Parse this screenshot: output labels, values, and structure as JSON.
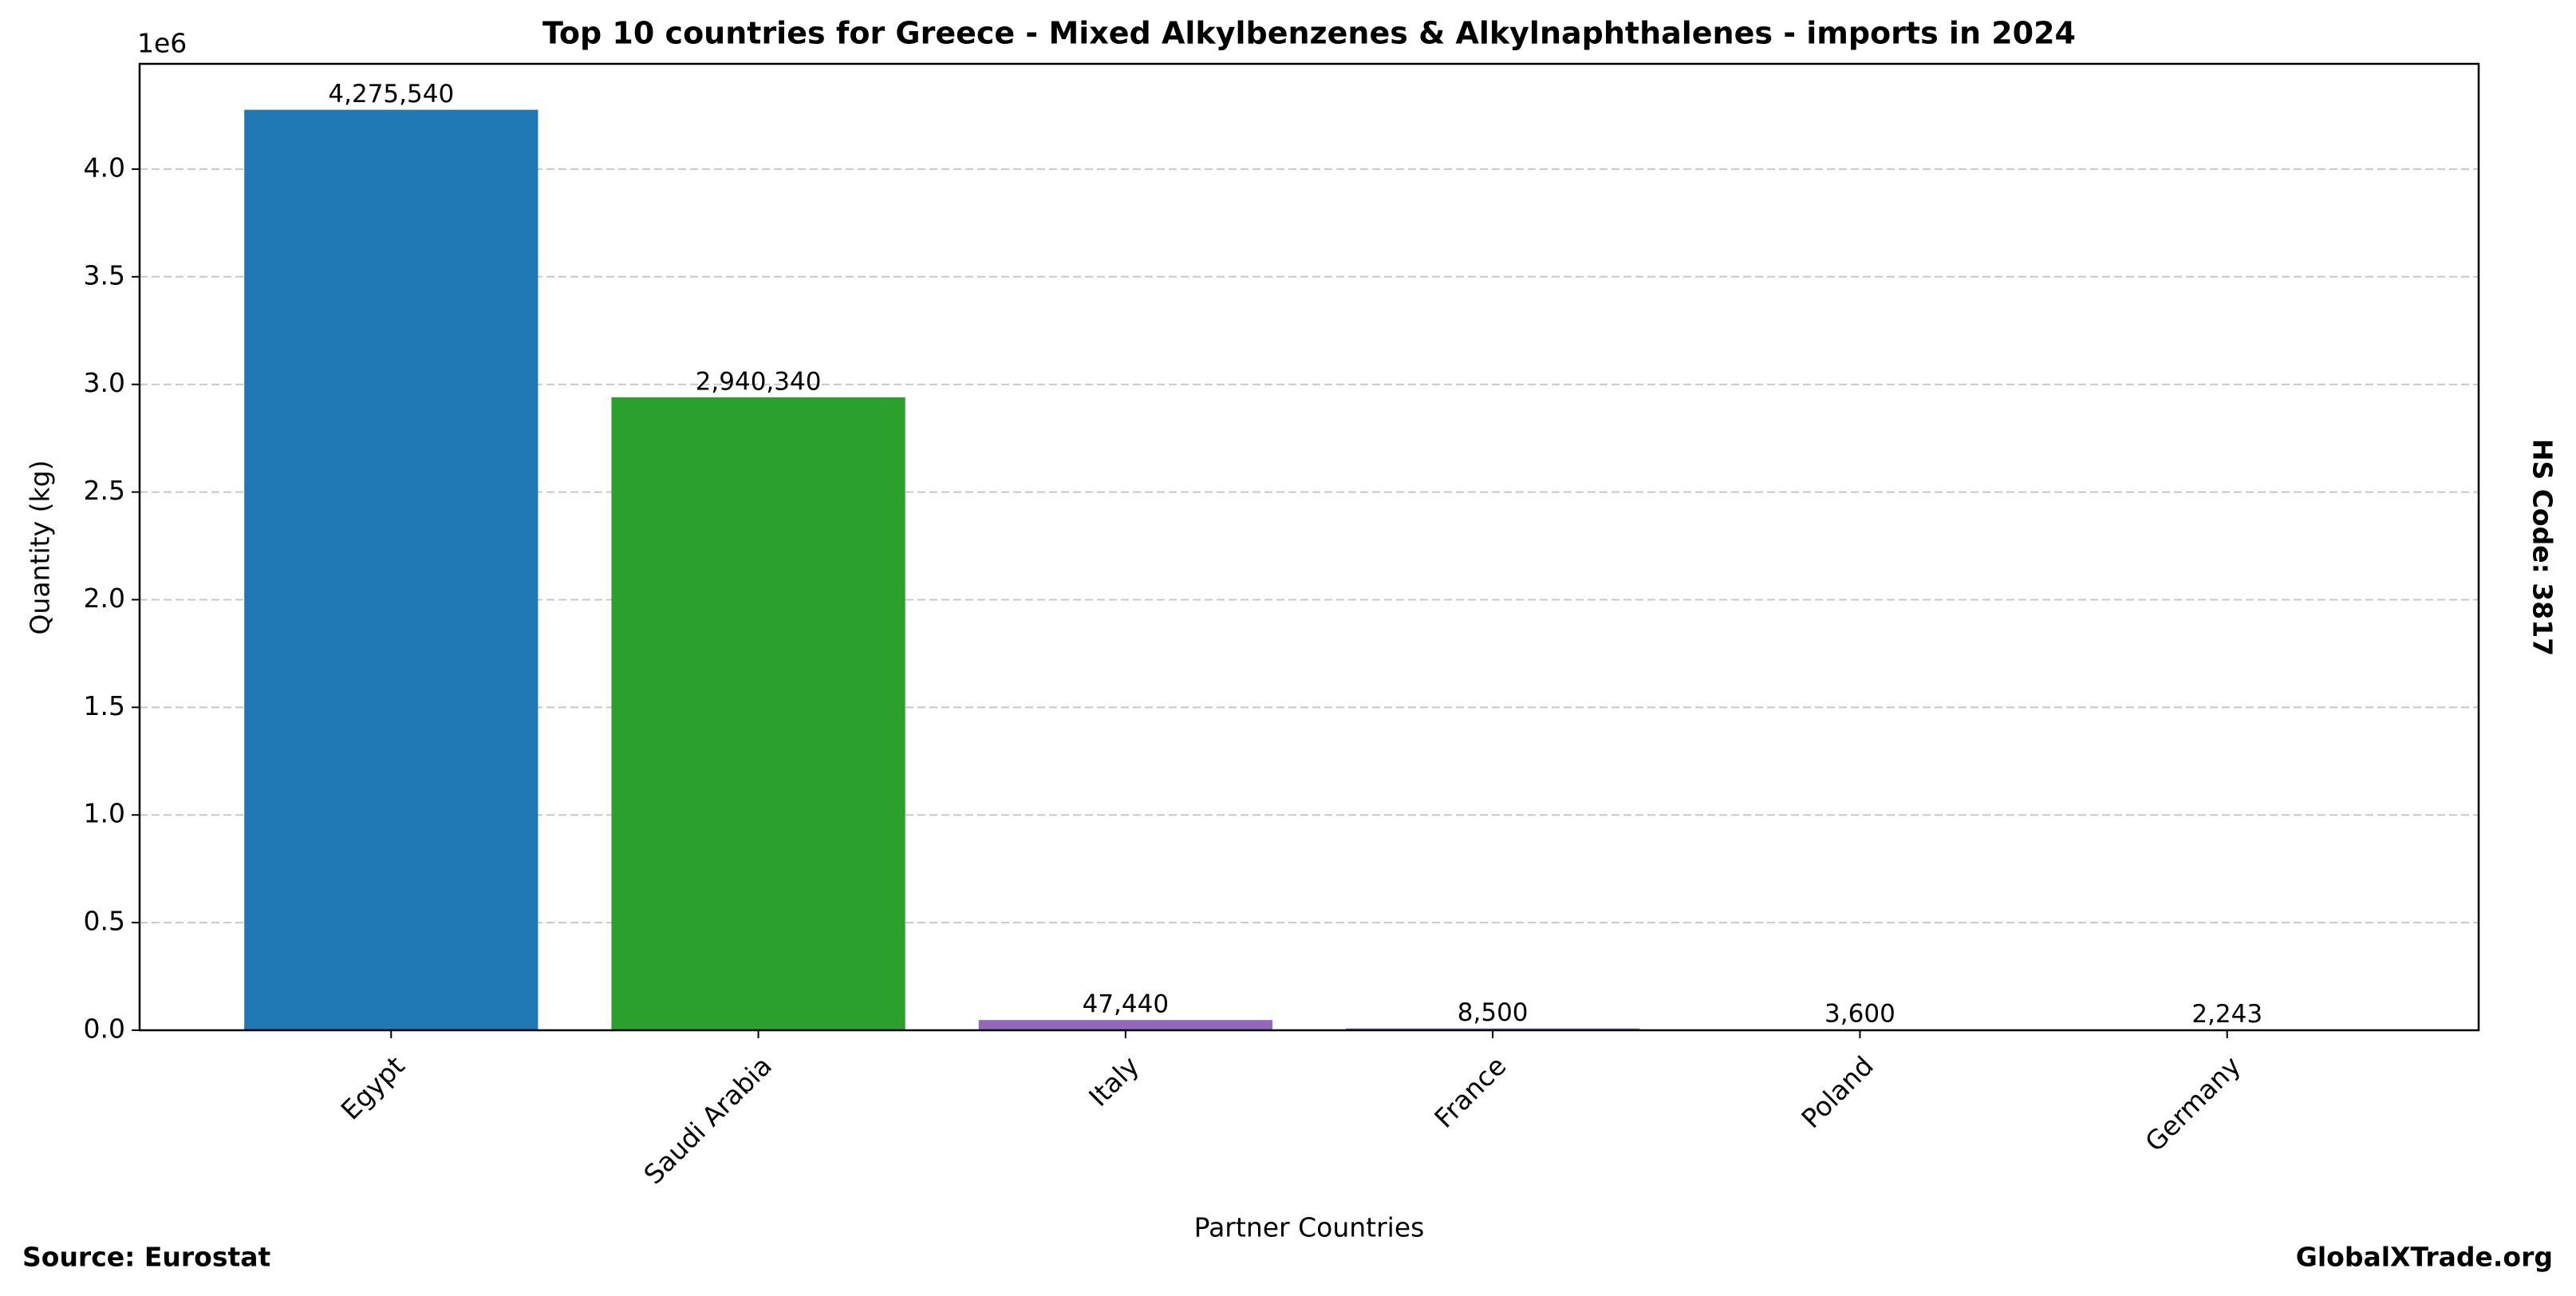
{
  "chart_data": {
    "type": "bar",
    "title": "Top 10 countries for Greece - Mixed Alkylbenzenes & Alkylnaphthalenes - imports in 2024",
    "xlabel": "Partner Countries",
    "ylabel": "Quantity (kg)",
    "y_offset_label": "1e6",
    "side_label": "HS Code: 3817",
    "source": "Source: Eurostat",
    "site": "GlobalXTrade.org",
    "categories": [
      "Egypt",
      "Saudi Arabia",
      "Italy",
      "France",
      "Poland",
      "Germany"
    ],
    "values": [
      4275540,
      2940340,
      47440,
      8500,
      3600,
      2243
    ],
    "value_labels": [
      "4,275,540",
      "2,940,340",
      "47,440",
      "8,500",
      "3,600",
      "2,243"
    ],
    "colors": [
      "#1f77b4",
      "#2ca02c",
      "#9467bd",
      "#9467bd",
      "#9467bd",
      "#9467bd"
    ],
    "ylim": [
      0,
      4489000
    ],
    "yticks": [
      {
        "value": 0,
        "label": "0.0"
      },
      {
        "value": 500000,
        "label": "0.5"
      },
      {
        "value": 1000000,
        "label": "1.0"
      },
      {
        "value": 1500000,
        "label": "1.5"
      },
      {
        "value": 2000000,
        "label": "2.0"
      },
      {
        "value": 2500000,
        "label": "2.5"
      },
      {
        "value": 3000000,
        "label": "3.0"
      },
      {
        "value": 3500000,
        "label": "3.5"
      },
      {
        "value": 4000000,
        "label": "4.0"
      }
    ],
    "grid": true
  }
}
